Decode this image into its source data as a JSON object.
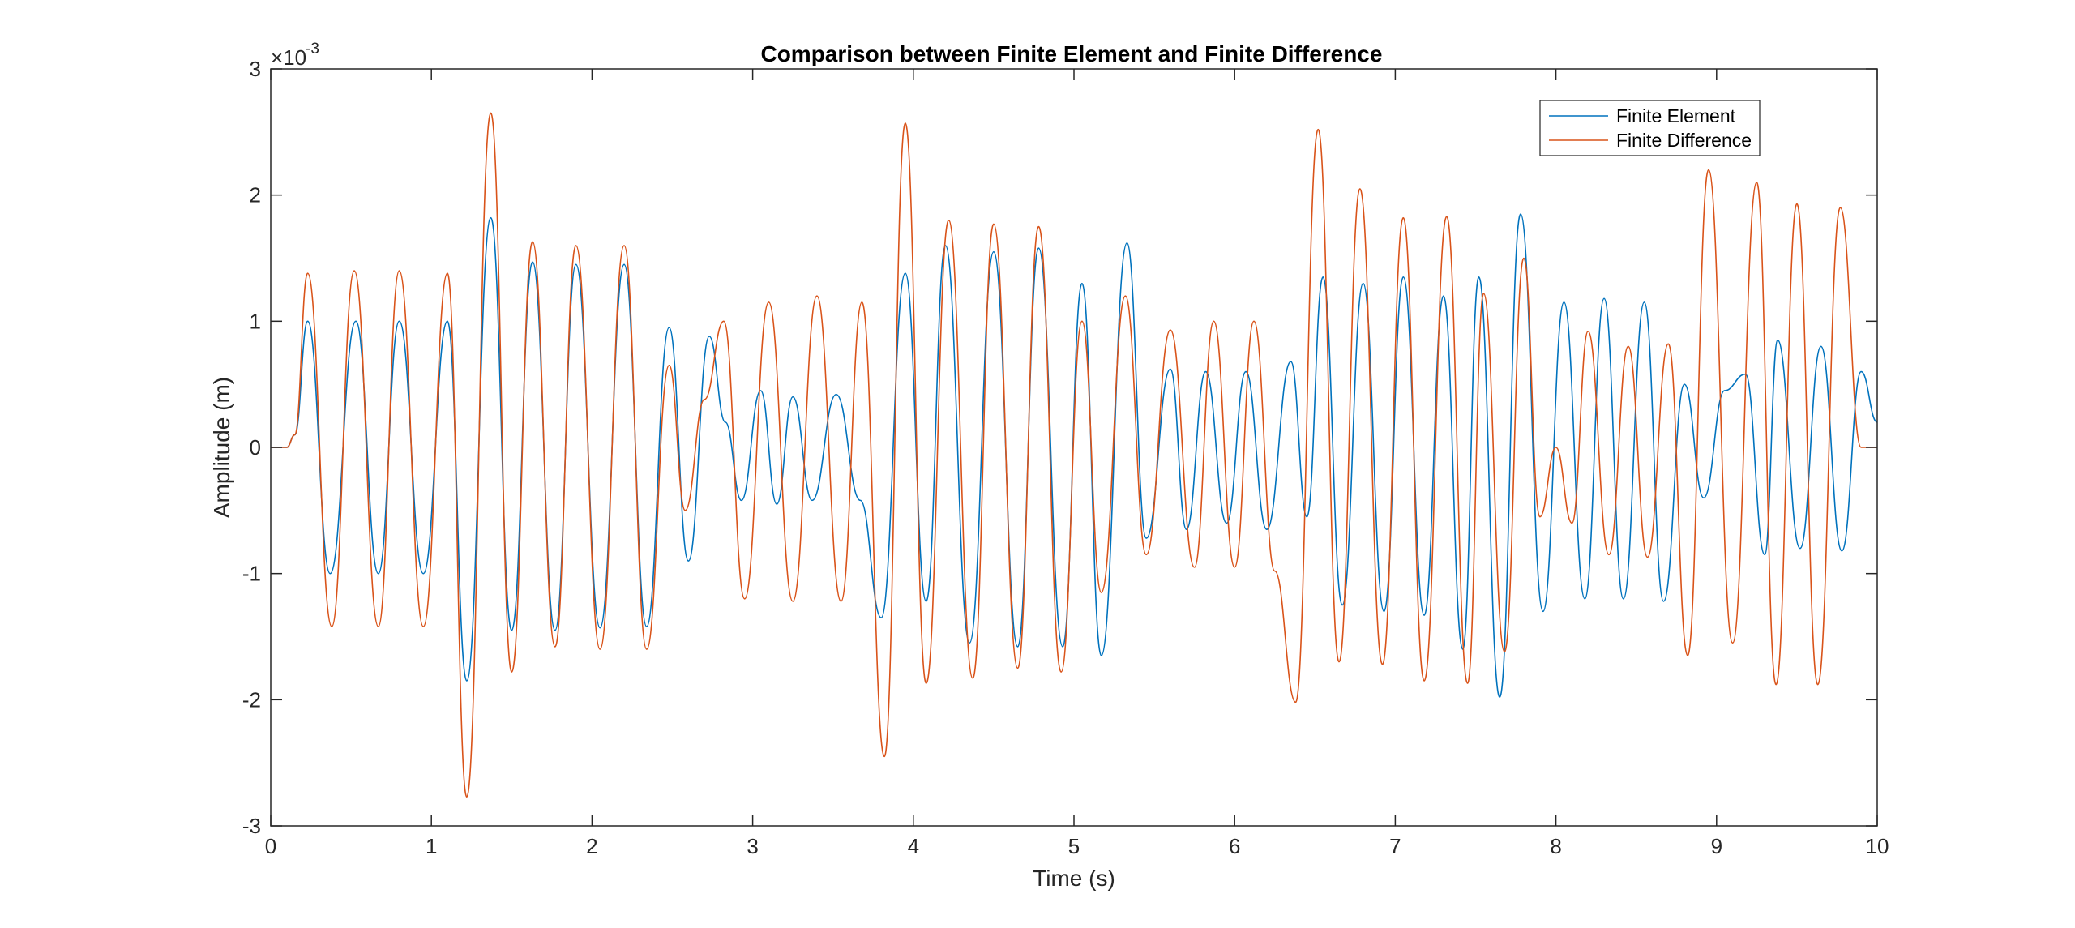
{
  "chart_data": {
    "type": "line",
    "title": "Comparison between Finite Element and Finite Difference",
    "xlabel": "Time (s)",
    "ylabel": "Amplitude (m)",
    "y_exponent_label": "×10",
    "y_exponent_power": "-3",
    "xlim": [
      0,
      10
    ],
    "ylim": [
      -3,
      3
    ],
    "x_ticks": [
      "0",
      "1",
      "2",
      "3",
      "4",
      "5",
      "6",
      "7",
      "8",
      "9",
      "10"
    ],
    "y_ticks": [
      "-3",
      "-2",
      "-1",
      "0",
      "1",
      "2",
      "3"
    ],
    "grid": false,
    "legend_position": "top-right",
    "series": [
      {
        "name": "Finite Element",
        "color": "#0072BD",
        "x": [
          0,
          0.05,
          0.1,
          0.15,
          0.23,
          0.37,
          0.53,
          0.67,
          0.8,
          0.95,
          1.1,
          1.22,
          1.37,
          1.5,
          1.63,
          1.77,
          1.9,
          2.05,
          2.2,
          2.34,
          2.48,
          2.6,
          2.73,
          2.83,
          2.93,
          3.05,
          3.15,
          3.25,
          3.37,
          3.52,
          3.67,
          3.8,
          3.95,
          4.08,
          4.2,
          4.35,
          4.5,
          4.65,
          4.78,
          4.93,
          5.05,
          5.17,
          5.33,
          5.45,
          5.6,
          5.7,
          5.82,
          5.95,
          6.07,
          6.2,
          6.35,
          6.45,
          6.55,
          6.67,
          6.8,
          6.93,
          7.05,
          7.18,
          7.3,
          7.42,
          7.52,
          7.65,
          7.78,
          7.92,
          8.05,
          8.18,
          8.3,
          8.42,
          8.55,
          8.67,
          8.8,
          8.92,
          9.05,
          9.18,
          9.3,
          9.38,
          9.52,
          9.65,
          9.78,
          9.9,
          10
        ],
        "y": [
          0,
          0,
          0,
          0.1,
          1.0,
          -1.0,
          1.0,
          -1.0,
          1.0,
          -1.0,
          1.0,
          -1.85,
          1.82,
          -1.45,
          1.47,
          -1.45,
          1.45,
          -1.43,
          1.45,
          -1.42,
          0.95,
          -0.9,
          0.88,
          0.2,
          -0.42,
          0.45,
          -0.45,
          0.4,
          -0.42,
          0.42,
          -0.42,
          -1.35,
          1.38,
          -1.22,
          1.6,
          -1.55,
          1.55,
          -1.58,
          1.58,
          -1.58,
          1.3,
          -1.65,
          1.62,
          -0.72,
          0.62,
          -0.65,
          0.6,
          -0.6,
          0.6,
          -0.65,
          0.68,
          -0.55,
          1.35,
          -1.25,
          1.3,
          -1.3,
          1.35,
          -1.33,
          1.2,
          -1.6,
          1.35,
          -1.98,
          1.85,
          -1.3,
          1.15,
          -1.2,
          1.18,
          -1.2,
          1.15,
          -1.22,
          0.5,
          -0.4,
          0.45,
          0.58,
          -0.85,
          0.85,
          -0.8,
          0.8,
          -0.82,
          0.6,
          0.2
        ]
      },
      {
        "name": "Finite Difference",
        "color": "#D95319",
        "x": [
          0,
          0.05,
          0.1,
          0.15,
          0.23,
          0.38,
          0.52,
          0.67,
          0.8,
          0.95,
          1.1,
          1.22,
          1.37,
          1.5,
          1.63,
          1.77,
          1.9,
          2.05,
          2.2,
          2.34,
          2.48,
          2.58,
          2.7,
          2.82,
          2.95,
          3.1,
          3.25,
          3.4,
          3.55,
          3.68,
          3.82,
          3.95,
          4.08,
          4.22,
          4.37,
          4.5,
          4.65,
          4.78,
          4.92,
          5.05,
          5.17,
          5.32,
          5.45,
          5.6,
          5.75,
          5.87,
          6.0,
          6.12,
          6.25,
          6.38,
          6.52,
          6.65,
          6.78,
          6.92,
          7.05,
          7.18,
          7.32,
          7.45,
          7.55,
          7.68,
          7.8,
          7.9,
          8.0,
          8.1,
          8.2,
          8.33,
          8.45,
          8.57,
          8.7,
          8.82,
          8.95,
          9.1,
          9.25,
          9.37,
          9.5,
          9.63,
          9.77,
          9.9,
          10
        ],
        "y": [
          0,
          0,
          0,
          0.1,
          1.38,
          -1.42,
          1.4,
          -1.42,
          1.4,
          -1.42,
          1.38,
          -2.77,
          2.65,
          -1.78,
          1.63,
          -1.58,
          1.6,
          -1.6,
          1.6,
          -1.6,
          0.65,
          -0.5,
          0.38,
          1.0,
          -1.2,
          1.15,
          -1.22,
          1.2,
          -1.22,
          1.15,
          -2.45,
          2.57,
          -1.87,
          1.8,
          -1.83,
          1.77,
          -1.75,
          1.75,
          -1.78,
          1.0,
          -1.15,
          1.2,
          -0.85,
          0.93,
          -0.95,
          1.0,
          -0.95,
          1.0,
          -0.98,
          -2.02,
          2.52,
          -1.7,
          2.05,
          -1.72,
          1.82,
          -1.85,
          1.83,
          -1.87,
          1.22,
          -1.62,
          1.5,
          -0.55,
          0.0,
          -0.6,
          0.92,
          -0.85,
          0.8,
          -0.87,
          0.82,
          -1.65,
          2.2,
          -1.55,
          2.1,
          -1.88,
          1.93,
          -1.88,
          1.9,
          0.0,
          0.0
        ]
      }
    ]
  }
}
